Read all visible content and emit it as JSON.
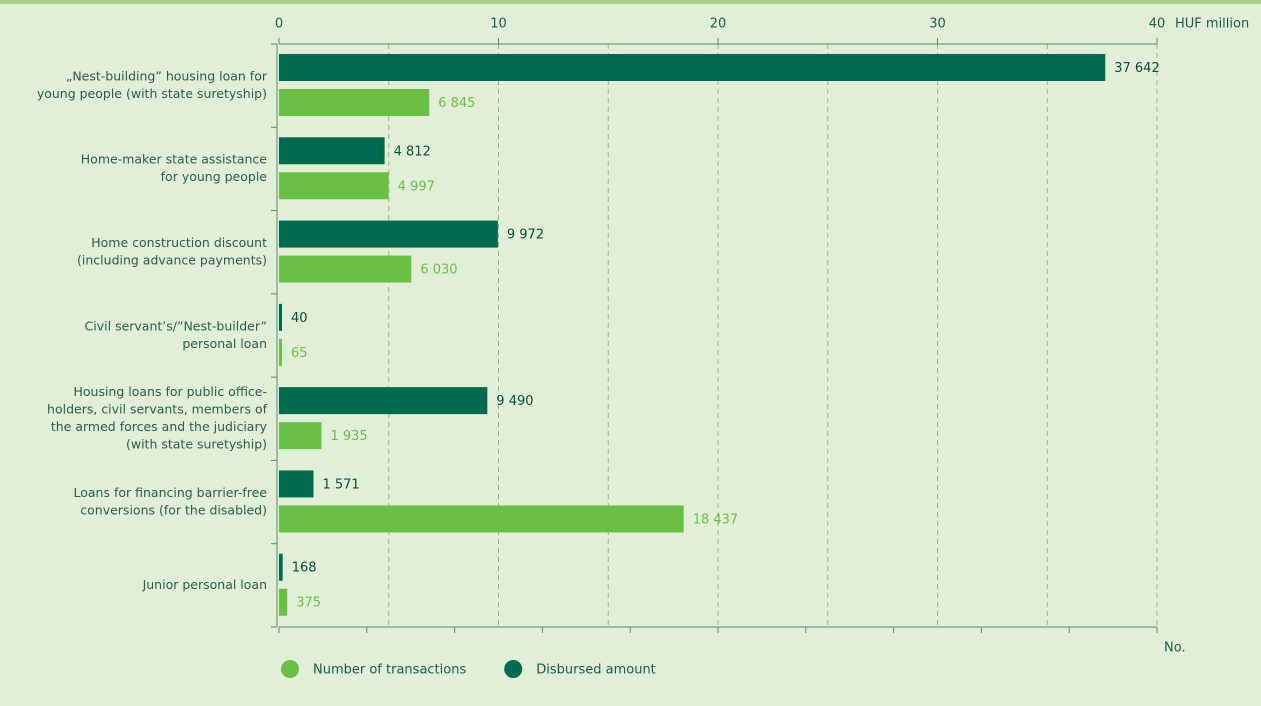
{
  "chart_data": {
    "type": "bar",
    "orientation": "horizontal",
    "categories": [
      [
        "„Nest-building” housing loan for",
        "young people (with state suretyship)"
      ],
      [
        "Home-maker state assistance",
        "for young people"
      ],
      [
        "Home construction discount",
        "(including advance payments)"
      ],
      [
        "Civil servant’s/”Nest-builder”",
        "personal loan"
      ],
      [
        "Housing loans for public office-",
        "holders, civil servants, members of",
        "the armed forces and the judiciary",
        "(with state suretyship)"
      ],
      [
        "Loans for financing barrier-free",
        "conversions (for the disabled)"
      ],
      [
        "Junior personal loan"
      ]
    ],
    "series": [
      {
        "name": "Disbursed amount",
        "color": "#006b4f",
        "values": [
          37642,
          4812,
          9972,
          40,
          9490,
          1571,
          168
        ],
        "value_labels": [
          "37 642",
          "4 812",
          "9 972",
          "40",
          "9 490",
          "1 571",
          "168"
        ]
      },
      {
        "name": "Number of transactions",
        "color": "#6cbf45",
        "axis": "x2",
        "values": [
          6845,
          4997,
          6030,
          65,
          1935,
          18437,
          375
        ],
        "value_labels": [
          "6 845",
          "4 997",
          "6 030",
          "65",
          "1 935",
          "18 437",
          "375"
        ]
      }
    ],
    "xlabel": "HUF million",
    "xlim": [
      0,
      40000
    ],
    "xticks": [
      {
        "value": 0,
        "label": "0"
      },
      {
        "value": 10000,
        "label": "10"
      },
      {
        "value": 20000,
        "label": "20"
      },
      {
        "value": 30000,
        "label": "30"
      },
      {
        "value": 40000,
        "label": "40"
      }
    ],
    "minor_xticks": [
      5000,
      15000,
      25000,
      35000
    ],
    "x2label": "No.",
    "x2lim": [
      0,
      40000
    ],
    "x2ticks": [
      0,
      4000,
      8000,
      12000,
      16000,
      20000,
      24000,
      28000,
      32000,
      36000,
      40000
    ],
    "grid": true
  }
}
